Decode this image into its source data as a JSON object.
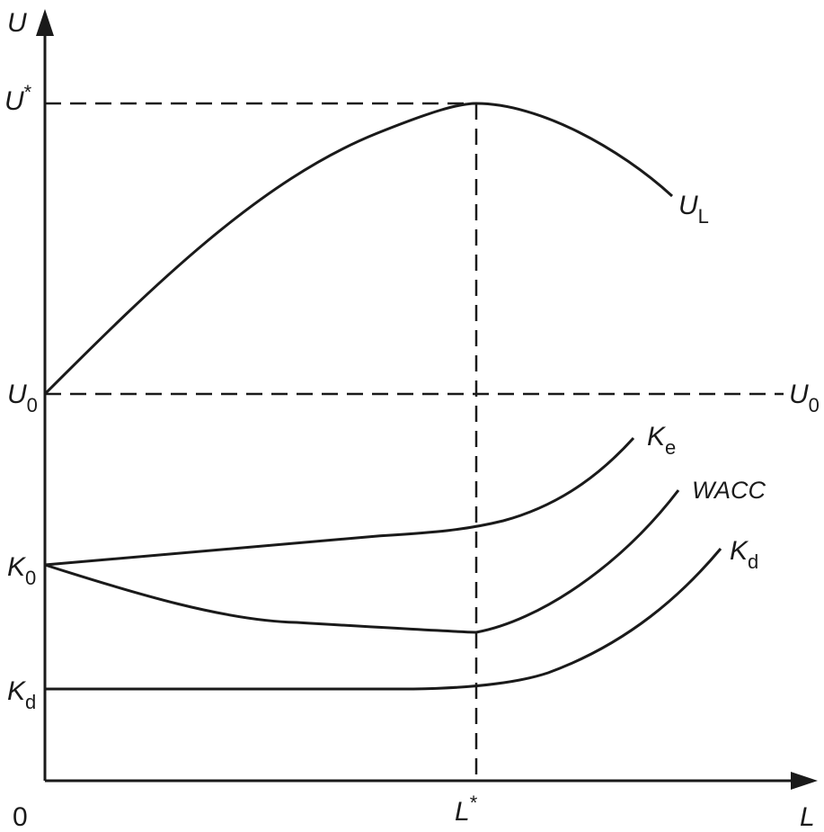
{
  "axes": {
    "y_label": "U",
    "x_label": "L",
    "origin": "0"
  },
  "labels": {
    "u_star": {
      "main": "U",
      "sup": "*"
    },
    "u0_left": {
      "main": "U",
      "sub": "0"
    },
    "u0_right": {
      "main": "U",
      "sub": "0"
    },
    "k0": {
      "main": "K",
      "sub": "0"
    },
    "kd_left": {
      "main": "K",
      "sub": "d"
    },
    "l_star": {
      "main": "L",
      "sup": "*"
    }
  },
  "curves": {
    "ul": {
      "main": "U",
      "sub": "L"
    },
    "ke": {
      "main": "K",
      "sub": "e"
    },
    "wacc": {
      "main": "WACC"
    },
    "kd": {
      "main": "K",
      "sub": "d"
    }
  }
}
